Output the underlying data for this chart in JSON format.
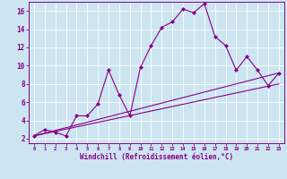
{
  "xlabel": "Windchill (Refroidissement éolien,°C)",
  "bg_color": "#cce5f0",
  "line_color": "#880088",
  "xlim": [
    -0.5,
    23.5
  ],
  "ylim": [
    1.5,
    17.0
  ],
  "xticks": [
    0,
    1,
    2,
    3,
    4,
    5,
    6,
    7,
    8,
    9,
    10,
    11,
    12,
    13,
    14,
    15,
    16,
    17,
    18,
    19,
    20,
    21,
    22,
    23
  ],
  "yticks": [
    2,
    4,
    6,
    8,
    10,
    12,
    14,
    16
  ],
  "line1_x": [
    0,
    1,
    2,
    3,
    4,
    5,
    6,
    7,
    8,
    9,
    10,
    11,
    12,
    13,
    14,
    15,
    16,
    17,
    18,
    19,
    20,
    21,
    22,
    23
  ],
  "line1_y": [
    2.3,
    3.0,
    2.7,
    2.3,
    4.5,
    4.5,
    5.8,
    9.5,
    6.8,
    4.5,
    9.8,
    12.2,
    14.2,
    14.8,
    16.2,
    15.8,
    16.8,
    13.2,
    12.2,
    9.5,
    11.0,
    9.5,
    7.8,
    9.2
  ],
  "line2_x": [
    0,
    23
  ],
  "line2_y": [
    2.3,
    9.2
  ],
  "line3_x": [
    0,
    23
  ],
  "line3_y": [
    2.3,
    8.0
  ]
}
